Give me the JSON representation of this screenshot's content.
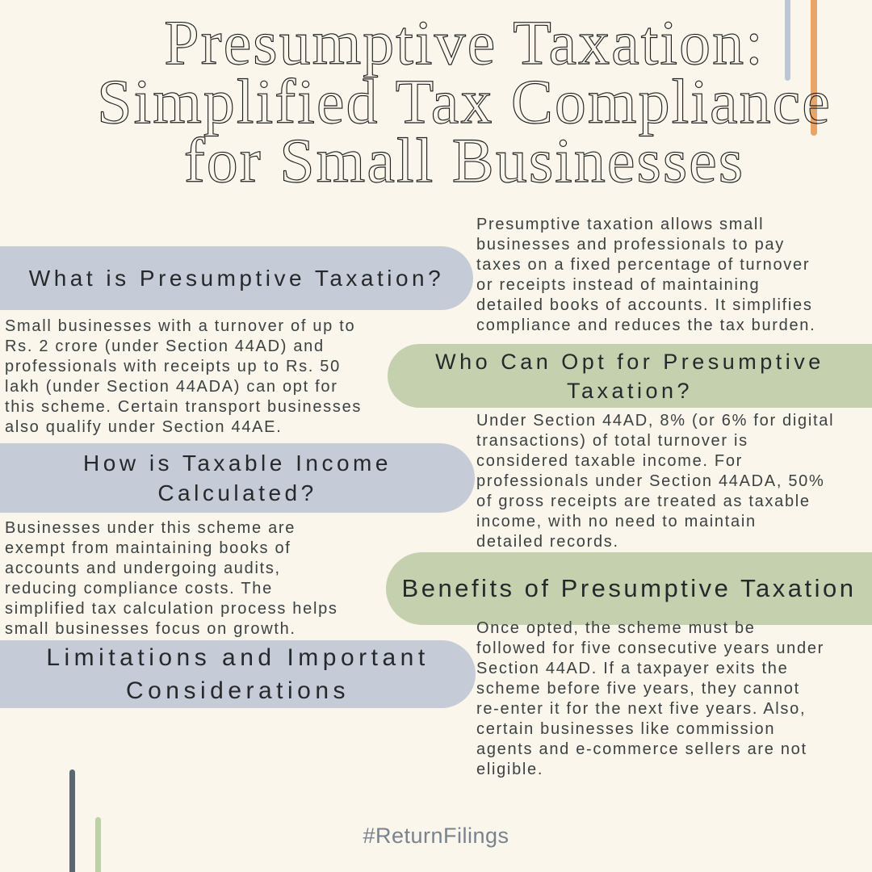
{
  "colors": {
    "background": "#FAF6EB",
    "pill_gray": "#C5CCD7",
    "pill_green": "#C5D0AF",
    "title_text": "#1F2022",
    "body_text": "#3C4142",
    "hashtag_text": "#79828F",
    "deco_gray_blue": "#BDC6D3",
    "deco_orange": "#E9A568",
    "deco_dark_slate": "#5A6673",
    "deco_sage_green": "#BDD0A8"
  },
  "title": {
    "text": "Presumptive Taxation:\nSimplified Tax Compliance\nfor Small Businesses"
  },
  "left_column": {
    "heading_what": "What is Presumptive Taxation?",
    "para_eligibility": "Small businesses with a turnover of up to\nRs. 2 crore (under Section 44AD) and\nprofessionals with receipts up to Rs. 50\nlakh (under Section 44ADA) can opt for\nthis scheme. Certain transport businesses\nalso qualify under Section 44AE.",
    "heading_how": "How is Taxable Income\nCalculated?",
    "para_exemptions": "Businesses under this scheme are\nexempt from maintaining books of\naccounts and undergoing audits,\nreducing compliance costs. The\nsimplified tax calculation process helps\nsmall businesses focus on growth.",
    "heading_limitations": "Limitations and Important\nConsiderations"
  },
  "right_column": {
    "para_definition": "Presumptive taxation allows small\nbusinesses and professionals to pay\ntaxes on a fixed percentage of turnover\nor receipts instead of maintaining\ndetailed books of accounts. It simplifies\ncompliance and reduces the tax burden.",
    "heading_who": "Who Can Opt for Presumptive\nTaxation?",
    "para_rates": "Under Section 44AD, 8% (or 6% for digital\ntransactions) of total turnover is\nconsidered taxable income. For\nprofessionals under Section 44ADA, 50%\nof gross receipts are treated as taxable\nincome, with no need to maintain\ndetailed records.",
    "heading_benefits": "Benefits of Presumptive Taxation",
    "para_rules": "Once opted, the scheme must be\nfollowed for five consecutive years under\nSection 44AD. If a taxpayer exits the\nscheme before five years, they cannot\nre-enter it for the next five years. Also,\ncertain businesses like commission\nagents and e-commerce sellers are not\neligible."
  },
  "footer": {
    "hashtag": "#ReturnFilings"
  }
}
